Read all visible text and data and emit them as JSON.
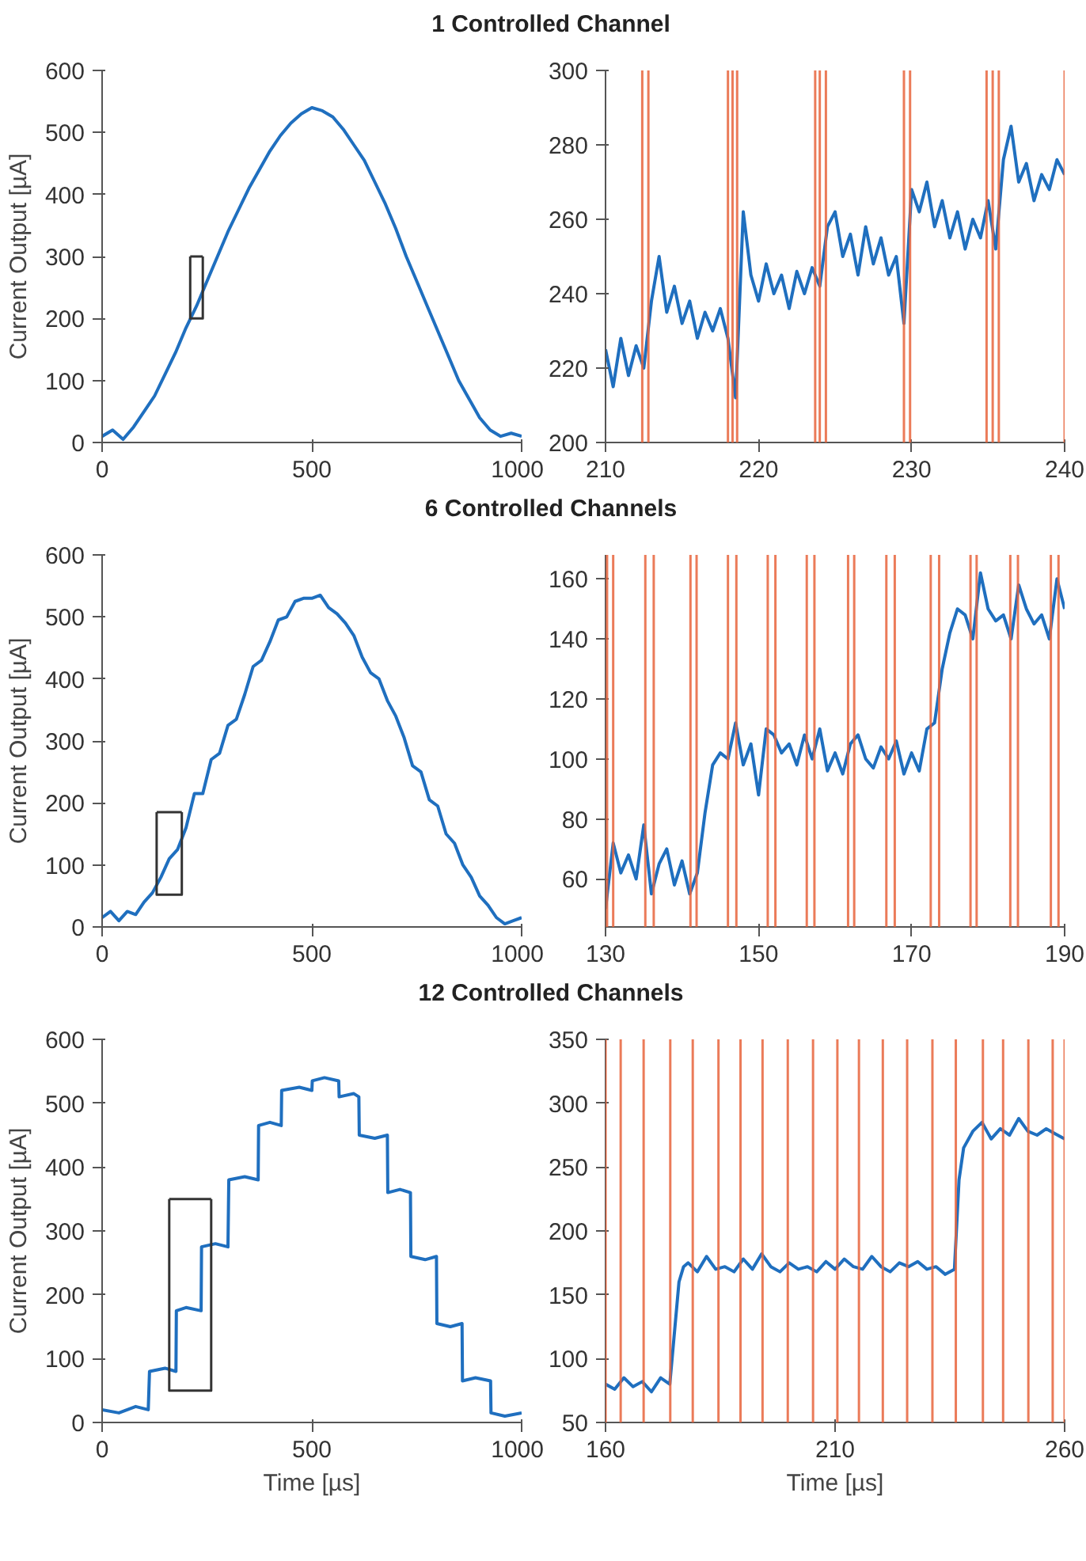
{
  "chart_data": [
    {
      "type": "line",
      "title": "1 Controlled Channel",
      "ylabel": "Current Output [µA]",
      "xlim": [
        0,
        1000
      ],
      "xticks": [
        0,
        500,
        1000
      ],
      "ylim": [
        0,
        600
      ],
      "yticks": [
        0,
        100,
        200,
        300,
        400,
        500,
        600
      ],
      "grid": false,
      "series": [
        {
          "color": "#1f6fbf",
          "x": [
            0,
            25,
            50,
            75,
            100,
            125,
            150,
            175,
            200,
            225,
            250,
            275,
            300,
            325,
            350,
            375,
            400,
            425,
            450,
            475,
            500,
            525,
            550,
            575,
            600,
            625,
            650,
            675,
            700,
            725,
            750,
            775,
            800,
            825,
            850,
            875,
            900,
            925,
            950,
            975,
            1000
          ],
          "values": [
            10,
            20,
            5,
            25,
            50,
            75,
            110,
            145,
            185,
            220,
            260,
            300,
            340,
            375,
            410,
            440,
            470,
            495,
            515,
            530,
            540,
            535,
            525,
            505,
            480,
            455,
            420,
            385,
            345,
            300,
            260,
            220,
            180,
            140,
            100,
            70,
            40,
            20,
            10,
            15,
            10
          ]
        },
        {
          "type": "line",
          "color": "#333333",
          "x": [
            210,
            210,
            240,
            240
          ],
          "values": [
            300,
            200,
            200,
            300
          ]
        },
        {
          "type": "line",
          "color": "#333333",
          "x": [
            210,
            240
          ],
          "values": [
            300,
            300
          ]
        }
      ]
    },
    {
      "type": "line",
      "xlim": [
        210,
        240
      ],
      "xticks": [
        210,
        220,
        230,
        240
      ],
      "ylim": [
        200,
        300
      ],
      "yticks": [
        200,
        220,
        240,
        260,
        280,
        300
      ],
      "grid": false,
      "series": [
        {
          "color": "#1f6fbf",
          "x": [
            210,
            210.5,
            211,
            211.5,
            212,
            212.5,
            213,
            213.5,
            214,
            214.5,
            215,
            215.5,
            216,
            216.5,
            217,
            217.5,
            218,
            218.5,
            219,
            219.5,
            220,
            220.5,
            221,
            221.5,
            222,
            222.5,
            223,
            223.5,
            224,
            224.5,
            225,
            225.5,
            226,
            226.5,
            227,
            227.5,
            228,
            228.5,
            229,
            229.5,
            230,
            230.5,
            231,
            231.5,
            232,
            232.5,
            233,
            233.5,
            234,
            234.5,
            235,
            235.5,
            236,
            236.5,
            237,
            237.5,
            238,
            238.5,
            239,
            239.5,
            240
          ],
          "values": [
            225,
            215,
            228,
            218,
            226,
            220,
            238,
            250,
            235,
            242,
            232,
            238,
            228,
            235,
            230,
            236,
            228,
            212,
            262,
            245,
            238,
            248,
            240,
            245,
            236,
            246,
            240,
            247,
            242,
            258,
            262,
            250,
            256,
            245,
            258,
            248,
            255,
            245,
            250,
            232,
            268,
            262,
            270,
            258,
            265,
            255,
            262,
            252,
            260,
            255,
            265,
            252,
            276,
            285,
            270,
            275,
            265,
            272,
            268,
            276,
            272
          ]
        }
      ],
      "ref_lines": [
        {
          "axis": "x",
          "value": 212.4,
          "color": "#e8643c"
        },
        {
          "axis": "x",
          "value": 212.8,
          "color": "#e8643c"
        },
        {
          "axis": "x",
          "value": 218.0,
          "color": "#e8643c"
        },
        {
          "axis": "x",
          "value": 218.3,
          "color": "#e8643c"
        },
        {
          "axis": "x",
          "value": 218.6,
          "color": "#e8643c"
        },
        {
          "axis": "x",
          "value": 223.7,
          "color": "#e8643c"
        },
        {
          "axis": "x",
          "value": 224.0,
          "color": "#e8643c"
        },
        {
          "axis": "x",
          "value": 224.4,
          "color": "#e8643c"
        },
        {
          "axis": "x",
          "value": 229.5,
          "color": "#e8643c"
        },
        {
          "axis": "x",
          "value": 229.9,
          "color": "#e8643c"
        },
        {
          "axis": "x",
          "value": 234.9,
          "color": "#e8643c"
        },
        {
          "axis": "x",
          "value": 235.3,
          "color": "#e8643c"
        },
        {
          "axis": "x",
          "value": 235.7,
          "color": "#e8643c"
        },
        {
          "axis": "x",
          "value": 240.0,
          "color": "#e8643c"
        }
      ]
    },
    {
      "type": "line",
      "title": "6 Controlled Channels",
      "ylabel": "Current Output [µA]",
      "xlim": [
        0,
        1000
      ],
      "xticks": [
        0,
        500,
        1000
      ],
      "ylim": [
        0,
        600
      ],
      "yticks": [
        0,
        100,
        200,
        300,
        400,
        500,
        600
      ],
      "grid": false,
      "series": [
        {
          "color": "#1f6fbf",
          "x": [
            0,
            20,
            40,
            60,
            80,
            100,
            120,
            140,
            160,
            180,
            200,
            220,
            240,
            260,
            280,
            300,
            320,
            340,
            360,
            380,
            400,
            420,
            440,
            460,
            480,
            500,
            520,
            540,
            560,
            580,
            600,
            620,
            640,
            660,
            680,
            700,
            720,
            740,
            760,
            780,
            800,
            820,
            840,
            860,
            880,
            900,
            920,
            940,
            960,
            980,
            1000
          ],
          "values": [
            15,
            25,
            10,
            25,
            20,
            40,
            55,
            80,
            110,
            125,
            160,
            215,
            215,
            270,
            280,
            325,
            335,
            375,
            420,
            430,
            460,
            495,
            500,
            525,
            530,
            530,
            535,
            515,
            505,
            490,
            470,
            435,
            410,
            400,
            365,
            340,
            305,
            260,
            250,
            205,
            195,
            150,
            135,
            100,
            80,
            50,
            35,
            15,
            5,
            10,
            15
          ]
        },
        {
          "type": "line",
          "color": "#333333",
          "x": [
            130,
            130,
            190,
            190
          ],
          "values": [
            185,
            52,
            52,
            185
          ]
        },
        {
          "type": "line",
          "color": "#333333",
          "x": [
            130,
            190
          ],
          "values": [
            185,
            185
          ]
        }
      ]
    },
    {
      "type": "line",
      "xlim": [
        130,
        190
      ],
      "xticks": [
        130,
        150,
        170,
        190
      ],
      "ylim": [
        44,
        168
      ],
      "yticks": [
        60,
        80,
        100,
        120,
        140,
        160
      ],
      "grid": false,
      "series": [
        {
          "color": "#1f6fbf",
          "x": [
            130,
            131,
            132,
            133,
            134,
            135,
            136,
            137,
            138,
            139,
            140,
            141,
            142,
            143,
            144,
            145,
            146,
            147,
            148,
            149,
            150,
            151,
            152,
            153,
            154,
            155,
            156,
            157,
            158,
            159,
            160,
            161,
            162,
            163,
            164,
            165,
            166,
            167,
            168,
            169,
            170,
            171,
            172,
            173,
            174,
            175,
            176,
            177,
            178,
            179,
            180,
            181,
            182,
            183,
            184,
            185,
            186,
            187,
            188,
            189,
            190
          ],
          "values": [
            50,
            72,
            62,
            68,
            60,
            78,
            55,
            65,
            70,
            58,
            66,
            55,
            62,
            82,
            98,
            102,
            100,
            112,
            98,
            105,
            88,
            110,
            108,
            102,
            105,
            98,
            108,
            100,
            110,
            96,
            102,
            95,
            105,
            108,
            100,
            97,
            104,
            100,
            106,
            95,
            102,
            96,
            110,
            112,
            130,
            142,
            150,
            148,
            140,
            162,
            150,
            146,
            148,
            140,
            158,
            150,
            145,
            148,
            140,
            160,
            150
          ]
        }
      ],
      "ref_lines": [
        {
          "axis": "x",
          "value": 130.2,
          "color": "#e8643c"
        },
        {
          "axis": "x",
          "value": 131.0,
          "color": "#e8643c"
        },
        {
          "axis": "x",
          "value": 135.2,
          "color": "#e8643c"
        },
        {
          "axis": "x",
          "value": 136.3,
          "color": "#e8643c"
        },
        {
          "axis": "x",
          "value": 141.1,
          "color": "#e8643c"
        },
        {
          "axis": "x",
          "value": 141.9,
          "color": "#e8643c"
        },
        {
          "axis": "x",
          "value": 146.0,
          "color": "#e8643c"
        },
        {
          "axis": "x",
          "value": 147.1,
          "color": "#e8643c"
        },
        {
          "axis": "x",
          "value": 151.2,
          "color": "#e8643c"
        },
        {
          "axis": "x",
          "value": 152.2,
          "color": "#e8643c"
        },
        {
          "axis": "x",
          "value": 156.3,
          "color": "#e8643c"
        },
        {
          "axis": "x",
          "value": 157.3,
          "color": "#e8643c"
        },
        {
          "axis": "x",
          "value": 161.7,
          "color": "#e8643c"
        },
        {
          "axis": "x",
          "value": 162.5,
          "color": "#e8643c"
        },
        {
          "axis": "x",
          "value": 166.7,
          "color": "#e8643c"
        },
        {
          "axis": "x",
          "value": 167.8,
          "color": "#e8643c"
        },
        {
          "axis": "x",
          "value": 172.5,
          "color": "#e8643c"
        },
        {
          "axis": "x",
          "value": 173.6,
          "color": "#e8643c"
        },
        {
          "axis": "x",
          "value": 177.7,
          "color": "#e8643c"
        },
        {
          "axis": "x",
          "value": 178.5,
          "color": "#e8643c"
        },
        {
          "axis": "x",
          "value": 182.9,
          "color": "#e8643c"
        },
        {
          "axis": "x",
          "value": 183.9,
          "color": "#e8643c"
        },
        {
          "axis": "x",
          "value": 188.2,
          "color": "#e8643c"
        },
        {
          "axis": "x",
          "value": 189.2,
          "color": "#e8643c"
        }
      ]
    },
    {
      "type": "line",
      "title": "12 Controlled Channels",
      "xlabel": "Time [µs]",
      "ylabel": "Current Output [µA]",
      "xlim": [
        0,
        1000
      ],
      "xticks": [
        0,
        500,
        1000
      ],
      "ylim": [
        0,
        600
      ],
      "yticks": [
        0,
        100,
        200,
        300,
        400,
        500,
        600
      ],
      "grid": false,
      "series": [
        {
          "color": "#1f6fbf",
          "x": [
            0,
            40,
            80,
            110,
            113,
            150,
            176,
            177,
            200,
            236,
            237,
            270,
            300,
            302,
            340,
            372,
            373,
            400,
            427,
            428,
            470,
            500,
            501,
            530,
            564,
            565,
            600,
            612,
            613,
            650,
            680,
            681,
            710,
            735,
            736,
            770,
            797,
            798,
            830,
            858,
            859,
            890,
            926,
            927,
            960,
            1000
          ],
          "values": [
            20,
            15,
            25,
            20,
            80,
            85,
            80,
            175,
            180,
            175,
            275,
            280,
            275,
            380,
            385,
            380,
            465,
            470,
            465,
            520,
            525,
            520,
            535,
            540,
            535,
            510,
            515,
            510,
            450,
            445,
            450,
            360,
            365,
            360,
            260,
            255,
            260,
            155,
            150,
            155,
            65,
            70,
            65,
            15,
            10,
            15
          ]
        },
        {
          "type": "line",
          "color": "#333333",
          "x": [
            160,
            160,
            260,
            260
          ],
          "values": [
            350,
            50,
            50,
            350
          ]
        },
        {
          "type": "line",
          "color": "#333333",
          "x": [
            160,
            260
          ],
          "values": [
            350,
            350
          ]
        }
      ]
    },
    {
      "type": "line",
      "xlabel": "Time [µs]",
      "xlim": [
        160,
        260
      ],
      "xticks": [
        160,
        210,
        260
      ],
      "ylim": [
        50,
        350
      ],
      "yticks": [
        50,
        100,
        150,
        200,
        250,
        300,
        350
      ],
      "grid": false,
      "series": [
        {
          "color": "#1f6fbf",
          "x": [
            160,
            162,
            164,
            166,
            168,
            170,
            172,
            174,
            176,
            177,
            178,
            180,
            182,
            184,
            186,
            188,
            190,
            192,
            194,
            196,
            198,
            200,
            202,
            204,
            206,
            208,
            210,
            212,
            214,
            216,
            218,
            220,
            222,
            224,
            226,
            228,
            230,
            232,
            234,
            236,
            237,
            238,
            240,
            242,
            244,
            246,
            248,
            250,
            252,
            254,
            256,
            258,
            260
          ],
          "values": [
            80,
            76,
            85,
            78,
            82,
            74,
            85,
            80,
            160,
            172,
            175,
            168,
            180,
            170,
            172,
            168,
            178,
            170,
            182,
            172,
            168,
            175,
            170,
            172,
            168,
            176,
            170,
            178,
            172,
            170,
            180,
            172,
            168,
            175,
            172,
            176,
            170,
            172,
            166,
            170,
            240,
            265,
            278,
            285,
            272,
            280,
            275,
            288,
            278,
            275,
            280,
            276,
            272
          ]
        }
      ],
      "ref_lines": [
        {
          "axis": "x",
          "value": 160.0,
          "color": "#e8643c"
        },
        {
          "axis": "x",
          "value": 163.3,
          "color": "#e8643c"
        },
        {
          "axis": "x",
          "value": 168.3,
          "color": "#e8643c"
        },
        {
          "axis": "x",
          "value": 174.1,
          "color": "#e8643c"
        },
        {
          "axis": "x",
          "value": 179.0,
          "color": "#e8643c"
        },
        {
          "axis": "x",
          "value": 184.6,
          "color": "#e8643c"
        },
        {
          "axis": "x",
          "value": 189.4,
          "color": "#e8643c"
        },
        {
          "axis": "x",
          "value": 194.2,
          "color": "#e8643c"
        },
        {
          "axis": "x",
          "value": 199.7,
          "color": "#e8643c"
        },
        {
          "axis": "x",
          "value": 205.2,
          "color": "#e8643c"
        },
        {
          "axis": "x",
          "value": 210.5,
          "color": "#e8643c"
        },
        {
          "axis": "x",
          "value": 215.2,
          "color": "#e8643c"
        },
        {
          "axis": "x",
          "value": 220.4,
          "color": "#e8643c"
        },
        {
          "axis": "x",
          "value": 225.7,
          "color": "#e8643c"
        },
        {
          "axis": "x",
          "value": 231.2,
          "color": "#e8643c"
        },
        {
          "axis": "x",
          "value": 236.3,
          "color": "#e8643c"
        },
        {
          "axis": "x",
          "value": 242.2,
          "color": "#e8643c"
        },
        {
          "axis": "x",
          "value": 246.6,
          "color": "#e8643c"
        },
        {
          "axis": "x",
          "value": 252.1,
          "color": "#e8643c"
        },
        {
          "axis": "x",
          "value": 257.4,
          "color": "#e8643c"
        },
        {
          "axis": "x",
          "value": 260.0,
          "color": "#e8643c"
        }
      ]
    }
  ]
}
